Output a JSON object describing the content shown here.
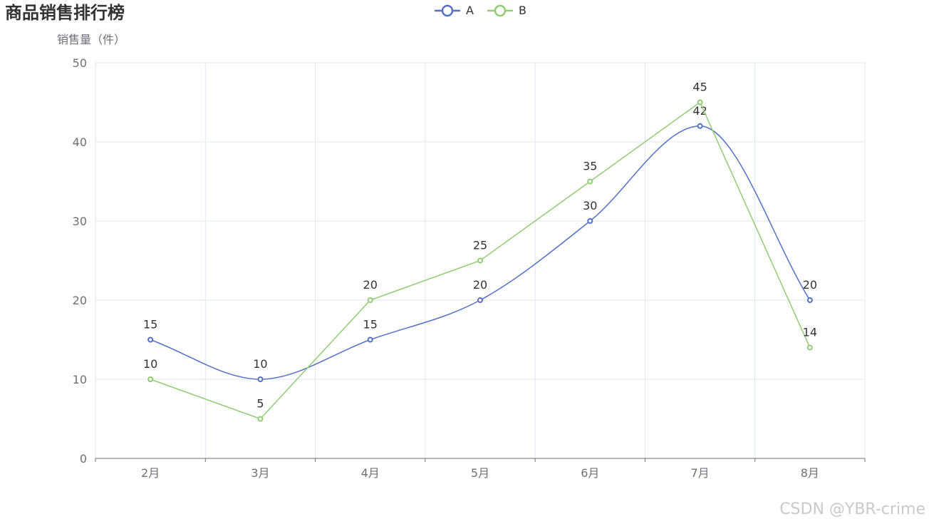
{
  "chart_data": {
    "type": "line",
    "title": "商品销售排行榜",
    "ylabel": "销售量（件）",
    "xlabel": "",
    "categories": [
      "2月",
      "3月",
      "4月",
      "5月",
      "6月",
      "7月",
      "8月"
    ],
    "ylim": [
      0,
      50
    ],
    "yticks": [
      0,
      10,
      20,
      30,
      40,
      50
    ],
    "grid": true,
    "legend_position": "top-center",
    "series": [
      {
        "name": "A",
        "values": [
          15,
          10,
          15,
          20,
          30,
          42,
          20
        ],
        "color": "#5470c6",
        "smooth": true
      },
      {
        "name": "B",
        "values": [
          10,
          5,
          20,
          25,
          35,
          45,
          14
        ],
        "color": "#91cc75",
        "smooth": false
      }
    ]
  },
  "watermark": "CSDN @YBR-crime"
}
